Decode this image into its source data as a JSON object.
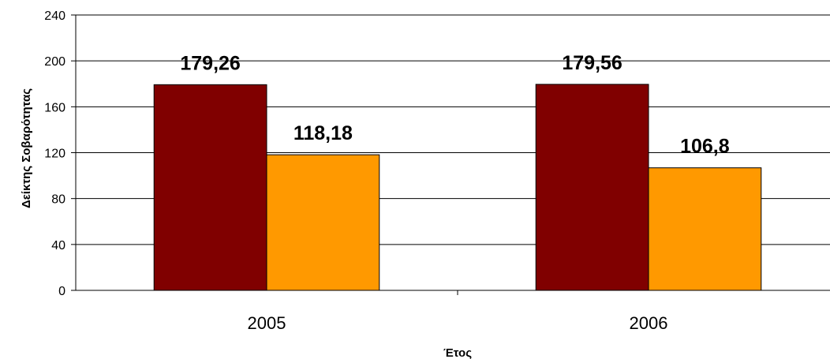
{
  "chart_data": {
    "type": "bar",
    "title": "",
    "xlabel": "Έτος",
    "ylabel": "Δείκτης Σοβαρότητας",
    "categories": [
      "2005",
      "2006"
    ],
    "series": [
      {
        "values": [
          179.26,
          179.56
        ],
        "labels": [
          "179,26",
          "179,56"
        ],
        "color": "#800000"
      },
      {
        "values": [
          118.18,
          106.8
        ],
        "labels": [
          "118,18",
          "106,8"
        ],
        "color": "#FF9900"
      }
    ],
    "ylim": [
      0,
      240
    ],
    "yticks": [
      0,
      40,
      80,
      120,
      160,
      200,
      240
    ],
    "grid": true,
    "legend": "none"
  }
}
